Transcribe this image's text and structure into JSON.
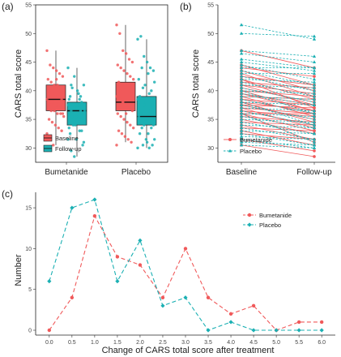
{
  "colors": {
    "bumetanide": "#F0595A",
    "placebo": "#1BB0B3",
    "baseline": "#F0595A",
    "followup": "#1BB0B3"
  },
  "panel_labels": {
    "a": "(a)",
    "b": "(b)",
    "c": "(c)"
  },
  "chart_data": [
    {
      "type": "box",
      "panel": "a",
      "ylabel": "CARS total score",
      "xlabel": "",
      "categories": [
        "Bumetanide",
        "Placebo"
      ],
      "yticks": [
        30,
        35,
        40,
        45,
        50,
        55
      ],
      "ylim": [
        27.5,
        55
      ],
      "legend_position": "bottom-left",
      "series": [
        {
          "name": "Baseline",
          "color": "baseline",
          "boxes": [
            {
              "category": "Bumetanide",
              "min": 30.5,
              "q1": 36.5,
              "median": 38.5,
              "q3": 41.0,
              "max": 47.0
            },
            {
              "category": "Placebo",
              "min": 31.0,
              "q1": 36.5,
              "median": 38.0,
              "q3": 41.5,
              "max": 51.5
            }
          ]
        },
        {
          "name": "Follow-up",
          "color": "followup",
          "boxes": [
            {
              "category": "Bumetanide",
              "min": 28.5,
              "q1": 34.0,
              "median": 36.5,
              "q3": 38.0,
              "max": 44.0
            },
            {
              "category": "Placebo",
              "min": 30.0,
              "q1": 34.0,
              "median": 35.5,
              "q3": 39.0,
              "max": 49.0
            }
          ]
        }
      ]
    },
    {
      "type": "paired-line",
      "panel": "b",
      "ylabel": "CARS total score",
      "categories": [
        "Baseline",
        "Follow-up"
      ],
      "yticks": [
        30,
        35,
        40,
        45,
        50,
        55
      ],
      "ylim": [
        27.5,
        55
      ],
      "legend_position": "bottom-left",
      "series": [
        {
          "name": "Bumetanide",
          "color": "bumetanide",
          "style": "solid",
          "pairs": [
            [
              47.0,
              44.0
            ],
            [
              44.5,
              41.0
            ],
            [
              44.0,
              42.5
            ],
            [
              43.5,
              40.0
            ],
            [
              43.0,
              39.0
            ],
            [
              42.5,
              41.0
            ],
            [
              42.0,
              38.5
            ],
            [
              41.5,
              40.5
            ],
            [
              41.0,
              37.5
            ],
            [
              41.0,
              39.5
            ],
            [
              40.5,
              38.0
            ],
            [
              40.0,
              36.5
            ],
            [
              40.0,
              39.0
            ],
            [
              39.5,
              37.5
            ],
            [
              39.0,
              35.5
            ],
            [
              39.0,
              38.5
            ],
            [
              38.5,
              36.0
            ],
            [
              38.5,
              37.5
            ],
            [
              38.0,
              36.5
            ],
            [
              38.0,
              34.5
            ],
            [
              37.5,
              37.0
            ],
            [
              37.5,
              35.0
            ],
            [
              37.0,
              36.0
            ],
            [
              37.0,
              33.5
            ],
            [
              36.5,
              35.5
            ],
            [
              36.5,
              34.0
            ],
            [
              36.0,
              36.0
            ],
            [
              36.0,
              33.0
            ],
            [
              35.5,
              34.5
            ],
            [
              35.0,
              32.5
            ],
            [
              34.5,
              34.0
            ],
            [
              34.0,
              31.5
            ],
            [
              33.5,
              33.0
            ],
            [
              33.0,
              30.5
            ],
            [
              32.5,
              31.5
            ],
            [
              31.5,
              29.5
            ],
            [
              30.5,
              28.5
            ],
            [
              42.0,
              37.0
            ],
            [
              39.5,
              36.5
            ],
            [
              36.0,
              31.0
            ]
          ]
        },
        {
          "name": "Placebo",
          "color": "placebo",
          "style": "dashed",
          "pairs": [
            [
              51.5,
              49.0
            ],
            [
              50.0,
              49.5
            ],
            [
              47.0,
              46.0
            ],
            [
              46.5,
              45.0
            ],
            [
              45.5,
              44.0
            ],
            [
              45.0,
              43.5
            ],
            [
              44.5,
              42.0
            ],
            [
              44.0,
              44.0
            ],
            [
              43.5,
              41.0
            ],
            [
              43.0,
              43.0
            ],
            [
              42.5,
              40.0
            ],
            [
              42.0,
              41.5
            ],
            [
              41.5,
              39.0
            ],
            [
              41.0,
              40.5
            ],
            [
              40.5,
              38.0
            ],
            [
              40.0,
              39.5
            ],
            [
              39.5,
              37.5
            ],
            [
              39.0,
              38.5
            ],
            [
              38.5,
              36.0
            ],
            [
              38.0,
              37.5
            ],
            [
              37.5,
              35.0
            ],
            [
              37.0,
              36.5
            ],
            [
              36.5,
              34.0
            ],
            [
              36.0,
              35.5
            ],
            [
              35.5,
              33.5
            ],
            [
              35.0,
              34.5
            ],
            [
              34.5,
              32.5
            ],
            [
              34.0,
              33.5
            ],
            [
              33.5,
              31.5
            ],
            [
              33.0,
              32.5
            ],
            [
              32.5,
              30.5
            ],
            [
              32.0,
              31.5
            ],
            [
              31.5,
              30.0
            ],
            [
              31.0,
              30.5
            ],
            [
              30.5,
              30.0
            ],
            [
              40.0,
              36.0
            ],
            [
              38.0,
              34.0
            ],
            [
              36.0,
              31.0
            ]
          ]
        }
      ]
    },
    {
      "type": "line",
      "panel": "c",
      "xlabel": "Change of CARS total score after treatment",
      "ylabel": "Number",
      "x": [
        0.0,
        0.5,
        1.0,
        1.5,
        2.0,
        2.5,
        3.0,
        3.5,
        4.0,
        4.5,
        5.0,
        5.5,
        6.0
      ],
      "xticks": [
        "0.0",
        "0.5",
        "1.0",
        "1.5",
        "2.0",
        "2.5",
        "3.0",
        "3.5",
        "4.0",
        "4.5",
        "5.0",
        "5.5",
        "6.0"
      ],
      "yticks": [
        0,
        5,
        10,
        15
      ],
      "ylim": [
        0,
        16.5
      ],
      "legend_position": "top-right",
      "series": [
        {
          "name": "Bumetanide",
          "color": "bumetanide",
          "marker": "circle",
          "values": [
            0,
            4,
            14,
            9,
            8,
            4,
            10,
            4,
            2,
            3,
            0,
            1,
            1
          ]
        },
        {
          "name": "Placebo",
          "color": "placebo",
          "marker": "diamond",
          "values": [
            6,
            15,
            16,
            6,
            11,
            3,
            4,
            0,
            1,
            0,
            0,
            0,
            0
          ]
        }
      ]
    }
  ]
}
